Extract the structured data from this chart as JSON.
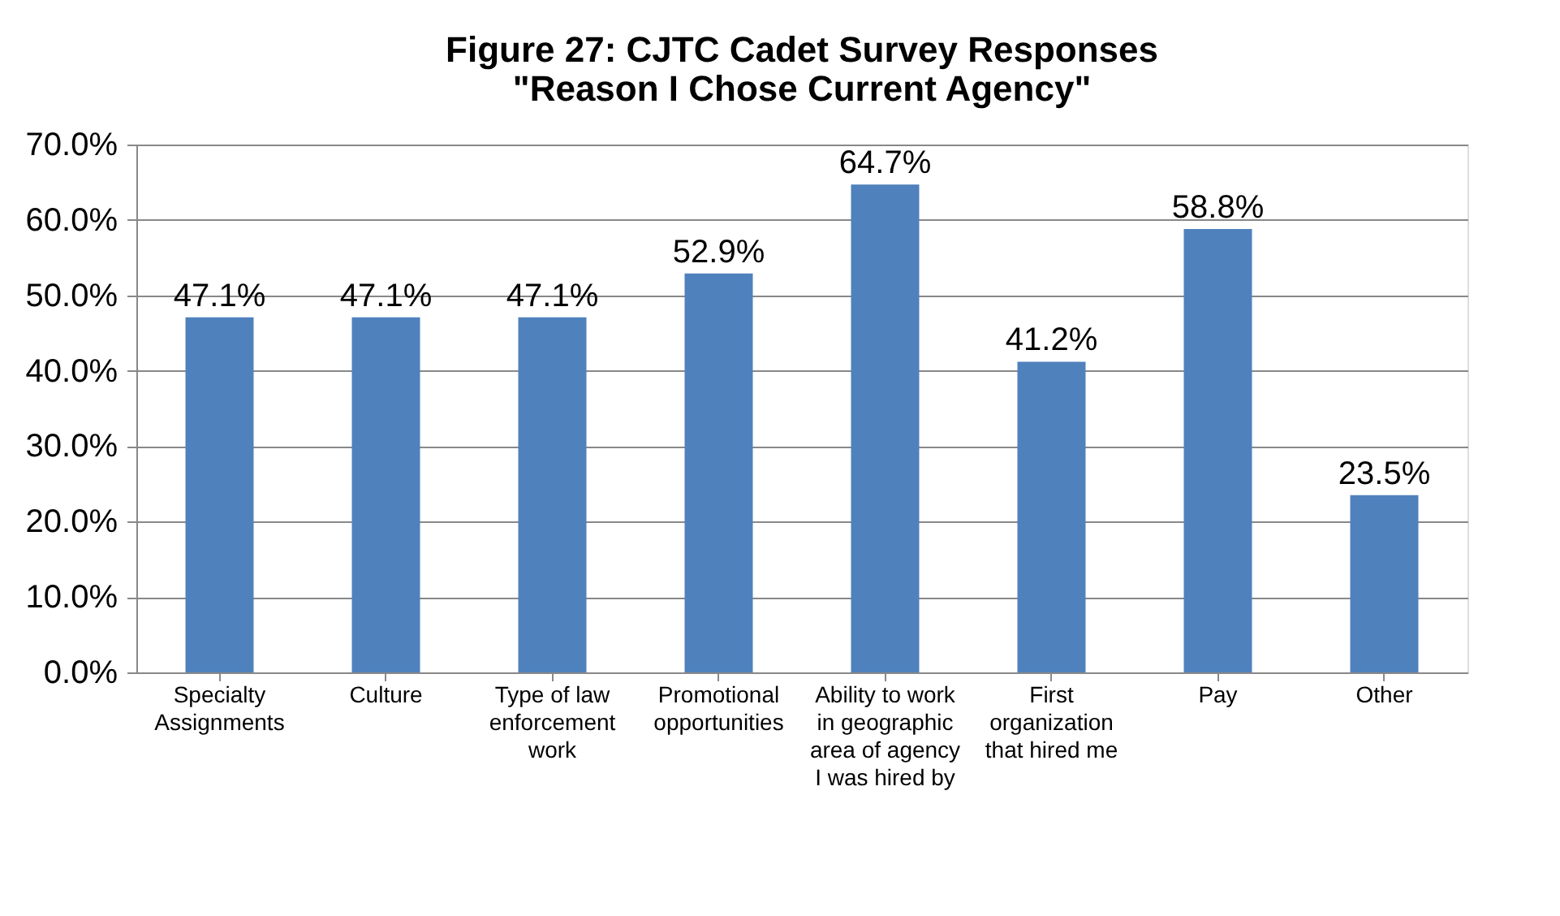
{
  "chart_data": {
    "type": "bar",
    "title": [
      "Figure 27: CJTC Cadet Survey Responses",
      "\"Reason I Chose Current Agency\""
    ],
    "categories": [
      "Specialty Assignments",
      "Culture",
      "Type of law enforcement work",
      "Promotional opportunities",
      "Ability to work in geographic area of agency I was hired by",
      "First organization that hired me",
      "Pay",
      "Other"
    ],
    "values": [
      47.1,
      47.1,
      47.1,
      52.9,
      64.7,
      41.2,
      58.8,
      23.5
    ],
    "value_labels": [
      "47.1%",
      "47.1%",
      "47.1%",
      "52.9%",
      "64.7%",
      "41.2%",
      "58.8%",
      "23.5%"
    ],
    "color": "#4f81bd",
    "ylim": [
      0,
      70
    ],
    "yticks": [
      {
        "value": 0,
        "label": "0.0%"
      },
      {
        "value": 10,
        "label": "10.0%"
      },
      {
        "value": 20,
        "label": "20.0%"
      },
      {
        "value": 30,
        "label": "30.0%"
      },
      {
        "value": 40,
        "label": "40.0%"
      },
      {
        "value": 50,
        "label": "50.0%"
      },
      {
        "value": 60,
        "label": "60.0%"
      },
      {
        "value": 70,
        "label": "70.0%"
      }
    ],
    "grid": "y"
  }
}
